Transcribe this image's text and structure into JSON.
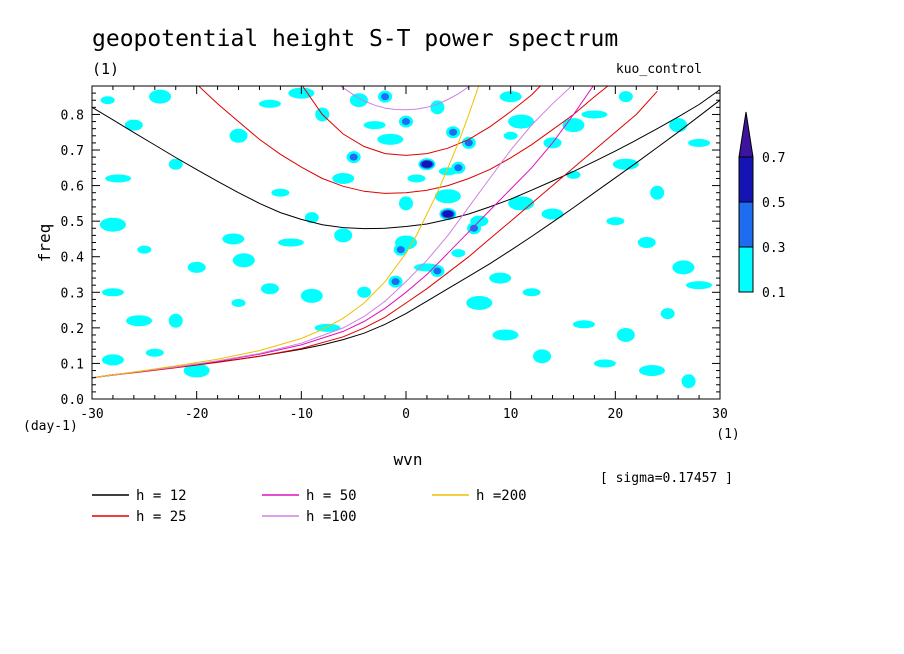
{
  "chart_data": {
    "type": "heatmap",
    "title": "geopotential height S-T power spectrum",
    "units_label": "(1)",
    "experiment": "kuo_control",
    "xlabel": "wvn",
    "ylabel": "freq",
    "x_unit_label": "(1)",
    "y_unit_label": "(day-1)",
    "xlim": [
      -30,
      30
    ],
    "ylim": [
      0,
      0.88
    ],
    "x_ticks": [
      -30,
      -20,
      -10,
      0,
      10,
      20,
      30
    ],
    "x_tick_labels": [
      "-30",
      "-20",
      "-10",
      "0",
      "10",
      "20",
      "30"
    ],
    "y_ticks": [
      0,
      0.1,
      0.2,
      0.3,
      0.4,
      0.5,
      0.6,
      0.7,
      0.8
    ],
    "y_tick_labels": [
      "0.0",
      "0.1",
      "0.2",
      "0.3",
      "0.4",
      "0.5",
      "0.6",
      "0.7",
      "0.8"
    ],
    "sigma_text": "[ sigma=0.17457 ]",
    "colorbar": {
      "levels": [
        0.1,
        0.3,
        0.5,
        0.7
      ],
      "labels": [
        "0.1",
        "0.3",
        "0.5",
        "0.7"
      ],
      "colors": [
        "#00ffff",
        "#1e6cf0",
        "#1414b4",
        "#3c14a0"
      ],
      "extend": "max"
    },
    "filled_patches": [
      {
        "wvn": -28.5,
        "freq": 0.84,
        "level": 1
      },
      {
        "wvn": -26,
        "freq": 0.77,
        "level": 1
      },
      {
        "wvn": -23.5,
        "freq": 0.85,
        "level": 1
      },
      {
        "wvn": -27.5,
        "freq": 0.62,
        "level": 1
      },
      {
        "wvn": -22,
        "freq": 0.66,
        "level": 1
      },
      {
        "wvn": -16,
        "freq": 0.74,
        "level": 1
      },
      {
        "wvn": -13,
        "freq": 0.83,
        "level": 1
      },
      {
        "wvn": -10,
        "freq": 0.86,
        "level": 1
      },
      {
        "wvn": -8,
        "freq": 0.8,
        "level": 1
      },
      {
        "wvn": -12,
        "freq": 0.58,
        "level": 1
      },
      {
        "wvn": -16.5,
        "freq": 0.45,
        "level": 1
      },
      {
        "wvn": -28,
        "freq": 0.49,
        "level": 1
      },
      {
        "wvn": -25,
        "freq": 0.42,
        "level": 1
      },
      {
        "wvn": -20,
        "freq": 0.37,
        "level": 1
      },
      {
        "wvn": -15.5,
        "freq": 0.39,
        "level": 1
      },
      {
        "wvn": -11,
        "freq": 0.44,
        "level": 1
      },
      {
        "wvn": -9,
        "freq": 0.51,
        "level": 1
      },
      {
        "wvn": -6,
        "freq": 0.46,
        "level": 1
      },
      {
        "wvn": -28,
        "freq": 0.3,
        "level": 1
      },
      {
        "wvn": -25.5,
        "freq": 0.22,
        "level": 1
      },
      {
        "wvn": -22,
        "freq": 0.22,
        "level": 1
      },
      {
        "wvn": -24,
        "freq": 0.13,
        "level": 1
      },
      {
        "wvn": -28,
        "freq": 0.11,
        "level": 1
      },
      {
        "wvn": -20,
        "freq": 0.08,
        "level": 1
      },
      {
        "wvn": -16,
        "freq": 0.27,
        "level": 1
      },
      {
        "wvn": -13,
        "freq": 0.31,
        "level": 1
      },
      {
        "wvn": -9,
        "freq": 0.29,
        "level": 1
      },
      {
        "wvn": -7.5,
        "freq": 0.2,
        "level": 1
      },
      {
        "wvn": -4,
        "freq": 0.3,
        "level": 1
      },
      {
        "wvn": -4.5,
        "freq": 0.84,
        "level": 1
      },
      {
        "wvn": -3,
        "freq": 0.77,
        "level": 1
      },
      {
        "wvn": -1.5,
        "freq": 0.73,
        "level": 1
      },
      {
        "wvn": 3,
        "freq": 0.82,
        "level": 1
      },
      {
        "wvn": 4,
        "freq": 0.64,
        "level": 1
      },
      {
        "wvn": 10,
        "freq": 0.85,
        "level": 1
      },
      {
        "wvn": 11,
        "freq": 0.78,
        "level": 1
      },
      {
        "wvn": 10,
        "freq": 0.74,
        "level": 1
      },
      {
        "wvn": 14,
        "freq": 0.72,
        "level": 1
      },
      {
        "wvn": 16,
        "freq": 0.77,
        "level": 1
      },
      {
        "wvn": 18,
        "freq": 0.8,
        "level": 1
      },
      {
        "wvn": 21,
        "freq": 0.85,
        "level": 1
      },
      {
        "wvn": 26,
        "freq": 0.77,
        "level": 1
      },
      {
        "wvn": 28,
        "freq": 0.72,
        "level": 1
      },
      {
        "wvn": 21,
        "freq": 0.66,
        "level": 1
      },
      {
        "wvn": 24,
        "freq": 0.58,
        "level": 1
      },
      {
        "wvn": 20,
        "freq": 0.5,
        "level": 1
      },
      {
        "wvn": 14,
        "freq": 0.52,
        "level": 1
      },
      {
        "wvn": 11,
        "freq": 0.55,
        "level": 1
      },
      {
        "wvn": 16,
        "freq": 0.63,
        "level": 1
      },
      {
        "wvn": 23,
        "freq": 0.44,
        "level": 1
      },
      {
        "wvn": 26.5,
        "freq": 0.37,
        "level": 1
      },
      {
        "wvn": 28,
        "freq": 0.32,
        "level": 1
      },
      {
        "wvn": 25,
        "freq": 0.24,
        "level": 1
      },
      {
        "wvn": 21,
        "freq": 0.18,
        "level": 1
      },
      {
        "wvn": 19,
        "freq": 0.1,
        "level": 1
      },
      {
        "wvn": 23.5,
        "freq": 0.08,
        "level": 1
      },
      {
        "wvn": 27,
        "freq": 0.05,
        "level": 1
      },
      {
        "wvn": 12,
        "freq": 0.3,
        "level": 1
      },
      {
        "wvn": 9,
        "freq": 0.34,
        "level": 1
      },
      {
        "wvn": 7,
        "freq": 0.27,
        "level": 1
      },
      {
        "wvn": 5,
        "freq": 0.41,
        "level": 1
      },
      {
        "wvn": 7,
        "freq": 0.5,
        "level": 1
      },
      {
        "wvn": 0,
        "freq": 0.44,
        "level": 1
      },
      {
        "wvn": 2,
        "freq": 0.37,
        "level": 1
      },
      {
        "wvn": -1,
        "freq": 0.33,
        "level": 1
      },
      {
        "wvn": 13,
        "freq": 0.12,
        "level": 1
      },
      {
        "wvn": 17,
        "freq": 0.21,
        "level": 1
      },
      {
        "wvn": 9.5,
        "freq": 0.18,
        "level": 1
      },
      {
        "wvn": 0,
        "freq": 0.55,
        "level": 1
      },
      {
        "wvn": 1,
        "freq": 0.62,
        "level": 1
      },
      {
        "wvn": -6,
        "freq": 0.62,
        "level": 1
      },
      {
        "wvn": 4,
        "freq": 0.57,
        "level": 1
      },
      {
        "wvn": -2,
        "freq": 0.85,
        "level": 2
      },
      {
        "wvn": 0,
        "freq": 0.78,
        "level": 2
      },
      {
        "wvn": 4.5,
        "freq": 0.75,
        "level": 2
      },
      {
        "wvn": 6,
        "freq": 0.72,
        "level": 2
      },
      {
        "wvn": -5,
        "freq": 0.68,
        "level": 2
      },
      {
        "wvn": 2,
        "freq": 0.66,
        "level": 3
      },
      {
        "wvn": 5,
        "freq": 0.65,
        "level": 2
      },
      {
        "wvn": 4,
        "freq": 0.52,
        "level": 3
      },
      {
        "wvn": 6.5,
        "freq": 0.48,
        "level": 2
      },
      {
        "wvn": -0.5,
        "freq": 0.42,
        "level": 2
      },
      {
        "wvn": 3,
        "freq": 0.36,
        "level": 2
      },
      {
        "wvn": -1,
        "freq": 0.33,
        "level": 2
      }
    ],
    "series": [
      {
        "name": "h = 12",
        "color": "#000000",
        "width": 1,
        "branches": [
          {
            "x": [
              -30,
              -28,
              -26,
              -24,
              -22,
              -20,
              -18,
              -16,
              -14,
              -12,
              -10,
              -8,
              -6,
              -4,
              -2,
              0,
              2,
              4,
              6,
              8,
              10,
              12,
              14,
              16,
              18,
              20,
              22,
              24,
              26,
              28,
              30
            ],
            "y": [
              0.06,
              0.068,
              0.075,
              0.082,
              0.089,
              0.097,
              0.104,
              0.112,
              0.12,
              0.13,
              0.14,
              0.152,
              0.167,
              0.185,
              0.21,
              0.24,
              0.275,
              0.31,
              0.345,
              0.38,
              0.418,
              0.457,
              0.497,
              0.538,
              0.58,
              0.622,
              0.664,
              0.707,
              0.75,
              0.795,
              0.84
            ]
          },
          {
            "x": [
              -30,
              -28,
              -26,
              -24,
              -22,
              -20,
              -18,
              -16,
              -14,
              -12,
              -10,
              -8,
              -6,
              -4,
              -2,
              0,
              2,
              4,
              6,
              8,
              10,
              12,
              14,
              16,
              18,
              20,
              22,
              24,
              26,
              28,
              30
            ],
            "y": [
              0.82,
              0.785,
              0.749,
              0.714,
              0.679,
              0.645,
              0.612,
              0.58,
              0.55,
              0.524,
              0.505,
              0.49,
              0.482,
              0.479,
              0.48,
              0.485,
              0.492,
              0.505,
              0.52,
              0.54,
              0.562,
              0.587,
              0.613,
              0.64,
              0.668,
              0.697,
              0.728,
              0.76,
              0.793,
              0.828,
              0.87
            ]
          }
        ]
      },
      {
        "name": "h = 25",
        "color": "#e00000",
        "width": 1,
        "branches": [
          {
            "x": [
              -30,
              -26,
              -22,
              -18,
              -14,
              -10,
              -6,
              -4,
              -2,
              0,
              2,
              4,
              6,
              8,
              10,
              12,
              14,
              16,
              18,
              20,
              22,
              24
            ],
            "y": [
              0.06,
              0.074,
              0.088,
              0.103,
              0.12,
              0.142,
              0.175,
              0.2,
              0.23,
              0.27,
              0.31,
              0.355,
              0.4,
              0.45,
              0.5,
              0.55,
              0.6,
              0.65,
              0.7,
              0.75,
              0.8,
              0.865
            ]
          },
          {
            "x": [
              -20,
              -18,
              -16,
              -14,
              -12,
              -10,
              -8,
              -6,
              -4,
              -2,
              0,
              2,
              4,
              6,
              8,
              10,
              12,
              14,
              16,
              18,
              19.5
            ],
            "y": [
              0.885,
              0.83,
              0.78,
              0.73,
              0.688,
              0.652,
              0.62,
              0.598,
              0.584,
              0.578,
              0.58,
              0.587,
              0.6,
              0.62,
              0.645,
              0.678,
              0.715,
              0.757,
              0.8,
              0.85,
              0.885
            ]
          },
          {
            "x": [
              -10,
              -8,
              -6,
              -4,
              -2,
              0,
              2,
              4,
              6,
              8,
              10,
              12,
              13
            ],
            "y": [
              0.885,
              0.8,
              0.745,
              0.71,
              0.69,
              0.685,
              0.69,
              0.705,
              0.73,
              0.765,
              0.808,
              0.855,
              0.885
            ]
          }
        ]
      },
      {
        "name": "h = 50",
        "color": "#e010c0",
        "width": 1,
        "branches": [
          {
            "x": [
              -30,
              -26,
              -22,
              -18,
              -14,
              -10,
              -6,
              -4,
              -2,
              0,
              2,
              4,
              6,
              8,
              10,
              12,
              14,
              16,
              18
            ],
            "y": [
              0.06,
              0.075,
              0.09,
              0.106,
              0.126,
              0.152,
              0.19,
              0.218,
              0.255,
              0.3,
              0.35,
              0.41,
              0.47,
              0.53,
              0.59,
              0.65,
              0.72,
              0.8,
              0.885
            ]
          }
        ]
      },
      {
        "name": "h =100",
        "color": "#d080e0",
        "width": 1,
        "branches": [
          {
            "x": [
              -30,
              -26,
              -22,
              -18,
              -14,
              -10,
              -6,
              -4,
              -2,
              0,
              2,
              4,
              6,
              8,
              10,
              12,
              14,
              16
            ],
            "y": [
              0.06,
              0.075,
              0.09,
              0.107,
              0.128,
              0.157,
              0.2,
              0.232,
              0.275,
              0.33,
              0.39,
              0.46,
              0.54,
              0.62,
              0.7,
              0.77,
              0.83,
              0.885
            ]
          },
          {
            "x": [
              -6.5,
              -6,
              -5,
              -4,
              -3,
              -2,
              -1,
              0,
              1,
              2,
              3,
              4,
              5,
              6,
              6.5
            ],
            "y": [
              0.885,
              0.875,
              0.855,
              0.838,
              0.826,
              0.818,
              0.814,
              0.813,
              0.815,
              0.82,
              0.829,
              0.842,
              0.858,
              0.878,
              0.885
            ]
          }
        ]
      },
      {
        "name": "h =200",
        "color": "#f0c000",
        "width": 1,
        "branches": [
          {
            "x": [
              -30,
              -26,
              -22,
              -18,
              -14,
              -10,
              -8,
              -6,
              -4,
              -2,
              0,
              1,
              2,
              3,
              4,
              5,
              6,
              7
            ],
            "y": [
              0.06,
              0.076,
              0.093,
              0.112,
              0.136,
              0.17,
              0.195,
              0.227,
              0.27,
              0.33,
              0.41,
              0.46,
              0.52,
              0.58,
              0.65,
              0.72,
              0.8,
              0.885
            ]
          }
        ]
      }
    ]
  }
}
